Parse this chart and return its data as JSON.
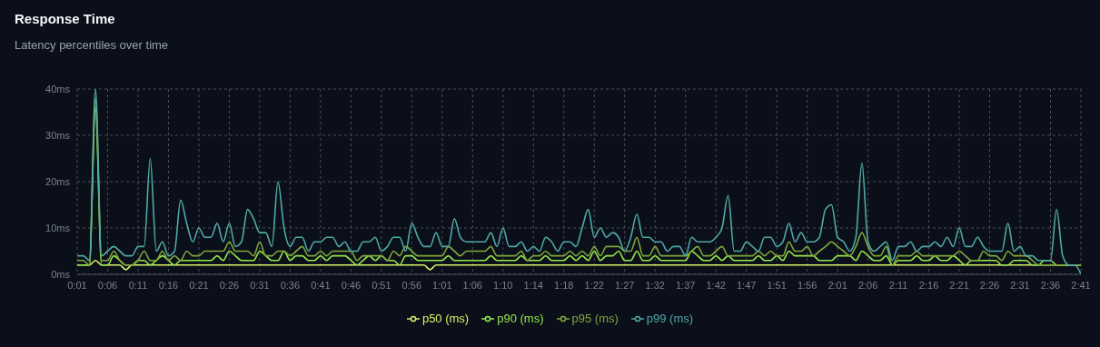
{
  "chart_data": {
    "type": "line",
    "title": "Response Time",
    "subtitle": "Latency percentiles over time",
    "categories": [
      "0:01",
      null,
      null,
      null,
      null,
      "0:06",
      null,
      null,
      null,
      null,
      "0:11",
      null,
      null,
      null,
      null,
      "0:16",
      null,
      null,
      null,
      null,
      "0:21",
      null,
      null,
      null,
      null,
      "0:26",
      null,
      null,
      null,
      null,
      "0:31",
      null,
      null,
      null,
      null,
      "0:36",
      null,
      null,
      null,
      null,
      "0:41",
      null,
      null,
      null,
      null,
      "0:46",
      null,
      null,
      null,
      null,
      "0:51",
      null,
      null,
      null,
      null,
      "0:56",
      null,
      null,
      null,
      null,
      "1:01",
      null,
      null,
      null,
      null,
      "1:06",
      null,
      null,
      null,
      null,
      "1:10",
      null,
      null,
      null,
      null,
      "1:14",
      null,
      null,
      null,
      null,
      "1:18",
      null,
      null,
      null,
      null,
      "1:22",
      null,
      null,
      null,
      null,
      "1:27",
      null,
      null,
      null,
      null,
      "1:32",
      null,
      null,
      null,
      null,
      "1:37",
      null,
      null,
      null,
      null,
      "1:42",
      null,
      null,
      null,
      null,
      "1:47",
      null,
      null,
      null,
      null,
      "1:51",
      null,
      null,
      null,
      null,
      "1:56",
      null,
      null,
      null,
      null,
      "2:01",
      null,
      null,
      null,
      null,
      "2:06",
      null,
      null,
      null,
      null,
      "2:11",
      null,
      null,
      null,
      null,
      "2:16",
      null,
      null,
      null,
      null,
      "2:21",
      null,
      null,
      null,
      null,
      "2:26",
      null,
      null,
      null,
      null,
      "2:31",
      null,
      null,
      null,
      null,
      "2:36",
      null,
      null,
      null,
      null,
      "2:41"
    ],
    "series": [
      {
        "name": "p50 (ms)",
        "color": "#d9f26b",
        "values": [
          2,
          2,
          2,
          3,
          2,
          2,
          2,
          2,
          1,
          2,
          2,
          2,
          2,
          2,
          2,
          2,
          2,
          2,
          2,
          2,
          2,
          2,
          2,
          2,
          2,
          2,
          2,
          2,
          2,
          2,
          2,
          2,
          2,
          2,
          2,
          2,
          2,
          2,
          2,
          2,
          2,
          2,
          2,
          2,
          2,
          2,
          2,
          2,
          2,
          2,
          2,
          2,
          2,
          2,
          2,
          2,
          2,
          2,
          1,
          2,
          2,
          2,
          2,
          2,
          2,
          2,
          2,
          2,
          2,
          2,
          2,
          2,
          2,
          2,
          2,
          2,
          2,
          2,
          2,
          2,
          2,
          2,
          2,
          2,
          2,
          2,
          2,
          2,
          2,
          2,
          2,
          2,
          2,
          2,
          2,
          2,
          2,
          2,
          2,
          2,
          2,
          2,
          2,
          2,
          2,
          2,
          2,
          2,
          2,
          2,
          2,
          2,
          2,
          2,
          2,
          2,
          2,
          2,
          2,
          2,
          2,
          2,
          2,
          2,
          2,
          2,
          2,
          2,
          2,
          2,
          2,
          2,
          2,
          2,
          2,
          2,
          2,
          2,
          2,
          2,
          2,
          2,
          2,
          2,
          2,
          2,
          2,
          2,
          2,
          2,
          2,
          2,
          2,
          2,
          2,
          2,
          2,
          2,
          2,
          2,
          2,
          2,
          2,
          2,
          2,
          2
        ]
      },
      {
        "name": "p90 (ms)",
        "color": "#94e84a",
        "values": [
          2,
          2,
          2,
          36,
          2,
          2,
          4,
          3,
          2,
          2,
          3,
          3,
          2,
          3,
          4,
          3,
          2,
          3,
          3,
          3,
          3,
          3,
          3,
          4,
          3,
          5,
          4,
          3,
          3,
          3,
          5,
          4,
          3,
          3,
          5,
          3,
          4,
          4,
          3,
          3,
          4,
          3,
          4,
          4,
          4,
          3,
          2,
          3,
          4,
          3,
          4,
          3,
          3,
          2,
          4,
          4,
          3,
          3,
          3,
          3,
          3,
          4,
          3,
          3,
          3,
          3,
          3,
          3,
          4,
          3,
          3,
          3,
          3,
          4,
          3,
          3,
          3,
          4,
          3,
          3,
          3,
          4,
          3,
          4,
          3,
          5,
          3,
          4,
          4,
          5,
          3,
          3,
          5,
          3,
          3,
          4,
          3,
          3,
          3,
          3,
          3,
          5,
          4,
          3,
          3,
          4,
          3,
          4,
          3,
          3,
          3,
          3,
          4,
          3,
          3,
          4,
          3,
          5,
          4,
          4,
          4,
          4,
          3,
          3,
          3,
          4,
          4,
          4,
          3,
          5,
          4,
          3,
          3,
          4,
          2,
          3,
          3,
          3,
          4,
          3,
          3,
          4,
          3,
          3,
          4,
          3,
          2,
          3,
          3,
          3,
          3,
          3,
          2,
          2,
          3,
          3,
          3,
          2,
          2,
          3,
          3,
          2,
          2,
          2,
          2,
          2
        ]
      },
      {
        "name": "p95 (ms)",
        "color": "#7fa83c",
        "values": [
          3,
          3,
          2,
          38,
          3,
          3,
          5,
          3,
          2,
          2,
          3,
          5,
          3,
          3,
          5,
          3,
          4,
          3,
          5,
          4,
          4,
          5,
          5,
          5,
          5,
          7,
          5,
          5,
          5,
          4,
          7,
          4,
          4,
          5,
          5,
          4,
          5,
          6,
          4,
          4,
          5,
          4,
          5,
          5,
          5,
          5,
          3,
          4,
          4,
          4,
          4,
          3,
          5,
          4,
          6,
          5,
          4,
          4,
          4,
          4,
          4,
          6,
          5,
          4,
          5,
          5,
          5,
          5,
          6,
          4,
          4,
          4,
          4,
          5,
          3,
          4,
          4,
          5,
          4,
          4,
          4,
          5,
          4,
          5,
          4,
          6,
          4,
          6,
          6,
          6,
          5,
          5,
          8,
          4,
          4,
          6,
          4,
          4,
          4,
          4,
          4,
          5,
          6,
          4,
          4,
          5,
          6,
          4,
          4,
          4,
          4,
          4,
          5,
          4,
          5,
          4,
          4,
          7,
          5,
          5,
          6,
          4,
          5,
          6,
          7,
          6,
          5,
          4,
          6,
          9,
          6,
          4,
          4,
          6,
          2,
          4,
          4,
          4,
          5,
          4,
          4,
          4,
          4,
          4,
          4,
          5,
          4,
          3,
          3,
          5,
          4,
          4,
          3,
          5,
          4,
          4,
          4,
          3,
          2,
          2,
          2,
          2,
          2,
          2,
          2,
          2
        ]
      },
      {
        "name": "p99 (ms)",
        "color": "#4faaa8",
        "values": [
          4,
          4,
          3,
          40,
          4,
          5,
          6,
          5,
          4,
          4,
          6,
          6,
          25,
          5,
          7,
          4,
          5,
          16,
          11,
          7,
          10,
          8,
          8,
          11,
          7,
          11,
          6,
          7,
          14,
          12,
          9,
          9,
          6,
          20,
          10,
          6,
          8,
          8,
          5,
          7,
          7,
          8,
          8,
          6,
          7,
          5,
          5,
          7,
          7,
          8,
          5,
          6,
          8,
          8,
          5,
          11,
          8,
          6,
          6,
          9,
          6,
          6,
          12,
          8,
          7,
          7,
          7,
          7,
          9,
          6,
          10,
          6,
          6,
          7,
          5,
          6,
          5,
          8,
          7,
          5,
          7,
          7,
          6,
          10,
          14,
          8,
          10,
          8,
          9,
          8,
          5,
          8,
          13,
          8,
          8,
          7,
          7,
          5,
          6,
          6,
          4,
          8,
          7,
          7,
          7,
          8,
          10,
          17,
          5,
          5,
          7,
          6,
          5,
          8,
          8,
          6,
          7,
          11,
          7,
          9,
          7,
          7,
          8,
          14,
          15,
          8,
          7,
          5,
          8,
          24,
          7,
          5,
          6,
          7,
          3,
          6,
          6,
          7,
          5,
          6,
          6,
          7,
          6,
          8,
          6,
          10,
          6,
          6,
          8,
          6,
          5,
          5,
          5,
          11,
          5,
          6,
          4,
          4,
          3,
          3,
          3,
          14,
          4,
          2,
          2,
          0
        ]
      }
    ],
    "ylim": [
      0,
      40
    ],
    "yticks": [
      {
        "value": 0,
        "label": "0ms"
      },
      {
        "value": 10,
        "label": "10ms"
      },
      {
        "value": 20,
        "label": "20ms"
      },
      {
        "value": 30,
        "label": "30ms"
      },
      {
        "value": 40,
        "label": "40ms"
      }
    ],
    "grid": true,
    "legend": "bottom"
  }
}
